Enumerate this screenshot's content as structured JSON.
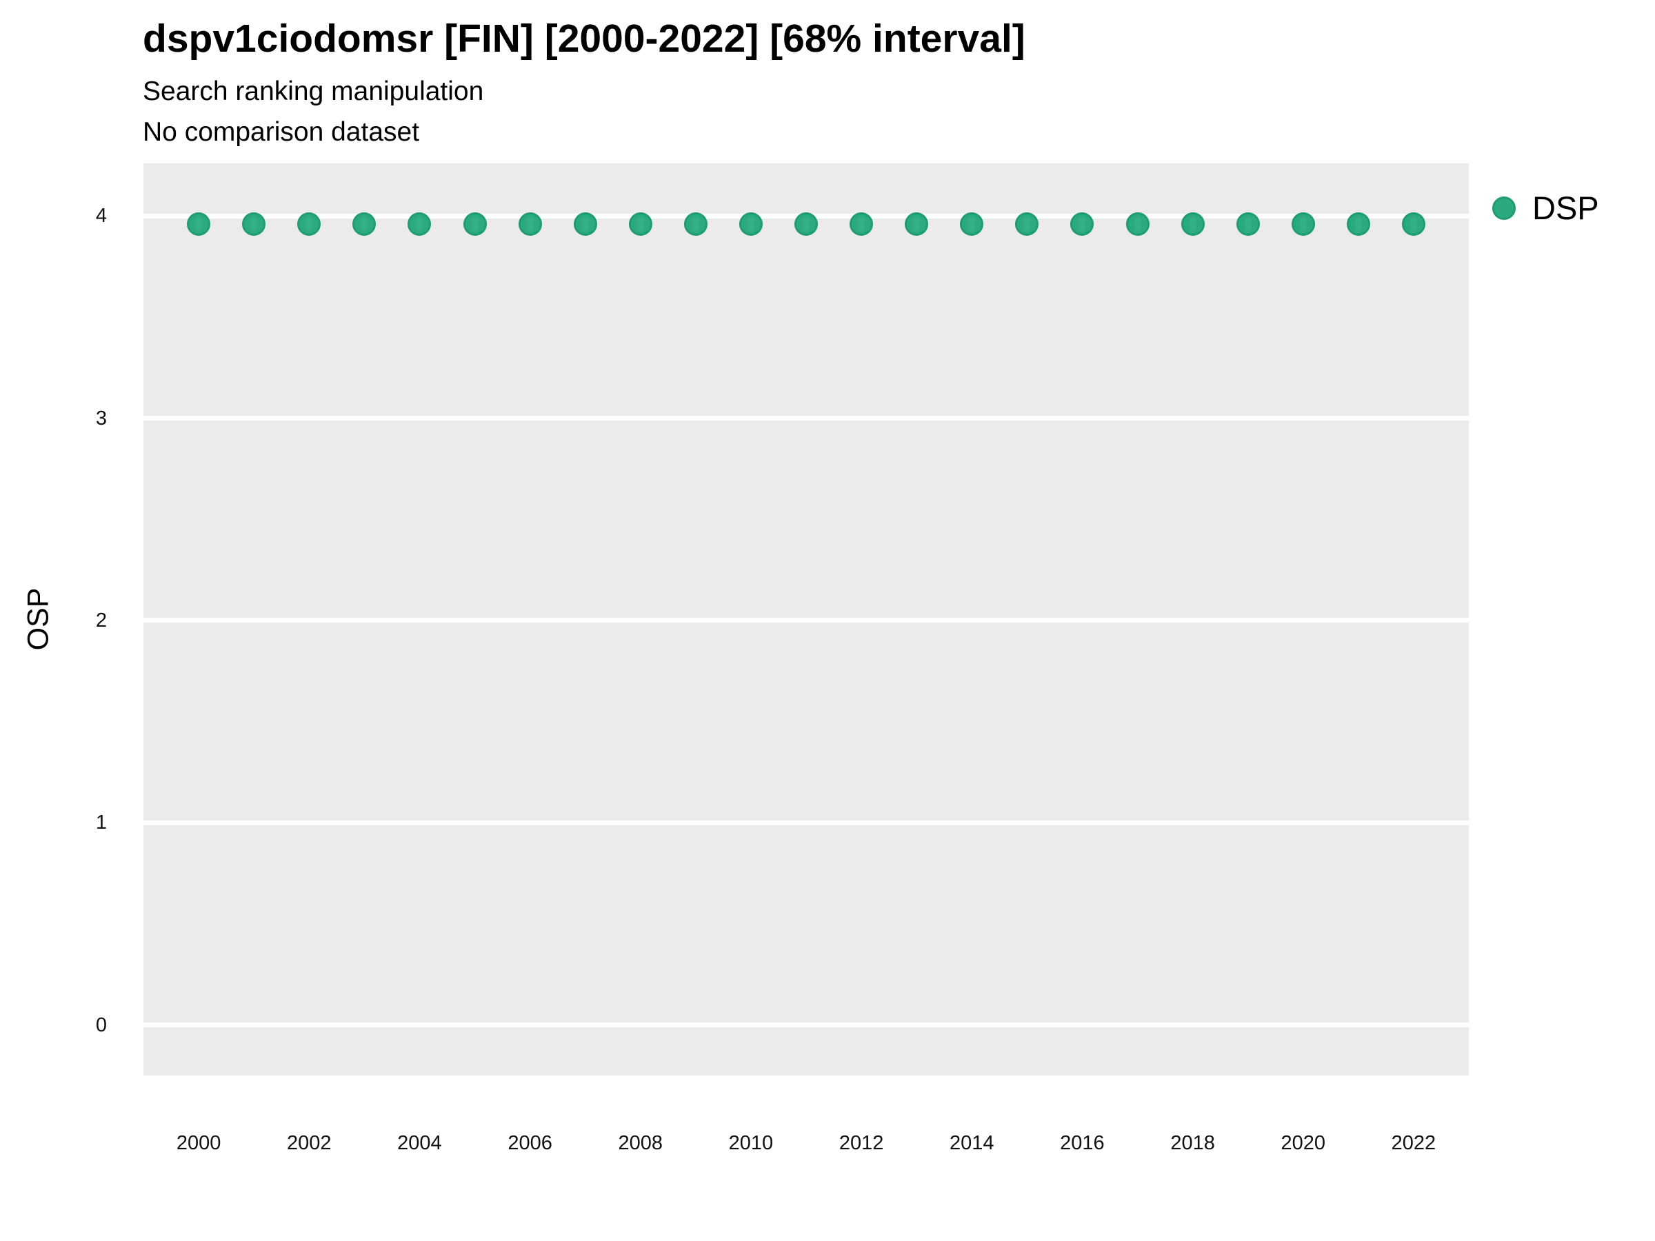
{
  "page": {
    "background": "#FFFFFF"
  },
  "chart_data": {
    "type": "scatter",
    "title": "dspv1ciodomsr [FIN] [2000-2022] [68% interval]",
    "subtitle": "Search ranking manipulation",
    "note": "No comparison dataset",
    "xlabel": "",
    "ylabel": "OSP",
    "x": [
      2000,
      2001,
      2002,
      2003,
      2004,
      2005,
      2006,
      2007,
      2008,
      2009,
      2010,
      2011,
      2012,
      2013,
      2014,
      2015,
      2016,
      2017,
      2018,
      2019,
      2020,
      2021,
      2022
    ],
    "series": [
      {
        "name": "DSP",
        "values": [
          3.96,
          3.96,
          3.96,
          3.96,
          3.96,
          3.96,
          3.96,
          3.96,
          3.96,
          3.96,
          3.96,
          3.96,
          3.96,
          3.96,
          3.96,
          3.96,
          3.96,
          3.96,
          3.96,
          3.96,
          3.96,
          3.96,
          3.96
        ]
      }
    ],
    "xticks": [
      2000,
      2002,
      2004,
      2006,
      2008,
      2010,
      2012,
      2014,
      2016,
      2018,
      2020,
      2022
    ],
    "yticks": [
      0,
      1,
      2,
      3,
      4
    ],
    "xlim": [
      1999,
      2023
    ],
    "ylim": [
      -0.25,
      4.26
    ],
    "grid": "horizontal-major-only",
    "legend_position": "right-top",
    "colors": {
      "panel_bg": "#EBEBEB",
      "grid": "#FFFFFF",
      "point_fill": "#2CAA7F",
      "point_stroke": "#1F9C73",
      "point_highlight": "#36B287",
      "text": "#000000"
    }
  }
}
